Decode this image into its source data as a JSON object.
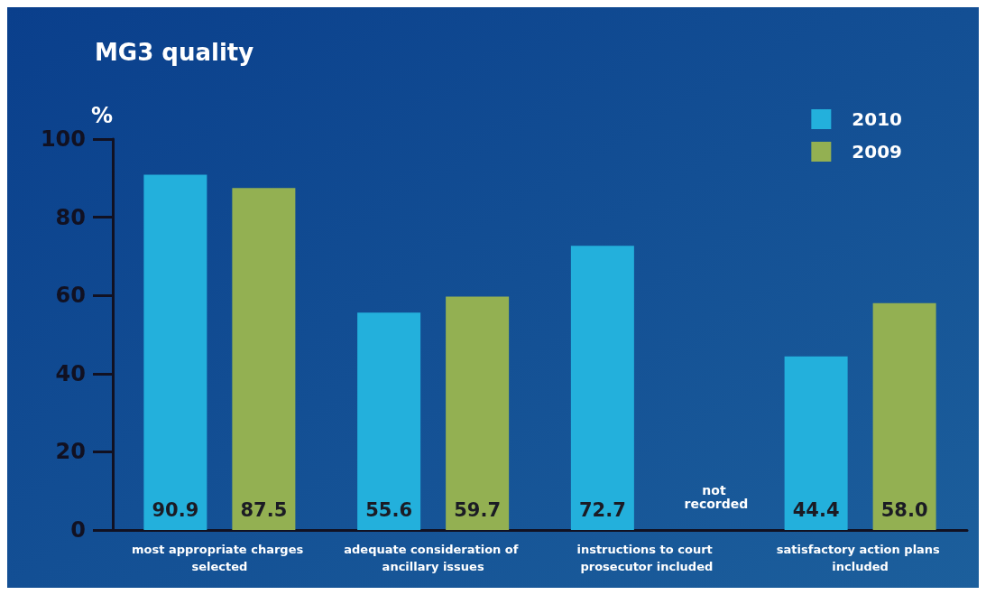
{
  "chart_data": {
    "type": "bar",
    "title": "MG3 quality",
    "ylabel": "%",
    "categories": [
      "most appropriate charges selected",
      "adequate consideration of ancillary issues",
      "instructions to court prosecutor included",
      "satisfactory action plans included"
    ],
    "series": [
      {
        "name": "2010",
        "color": "#23b0dc",
        "values": [
          90.9,
          55.6,
          72.7,
          44.4
        ],
        "value_labels": [
          "90.9",
          "55.6",
          "72.7",
          "44.4"
        ]
      },
      {
        "name": "2009",
        "color": "#93b052",
        "values": [
          87.5,
          59.7,
          null,
          58.0
        ],
        "value_labels": [
          "87.5",
          "59.7",
          null,
          "58.0"
        ]
      }
    ],
    "annotations": [
      "not recorded"
    ],
    "ylim": [
      0,
      100
    ],
    "yticks": [
      0,
      20,
      40,
      60,
      80,
      100
    ],
    "grid": false,
    "legend": "top right"
  }
}
